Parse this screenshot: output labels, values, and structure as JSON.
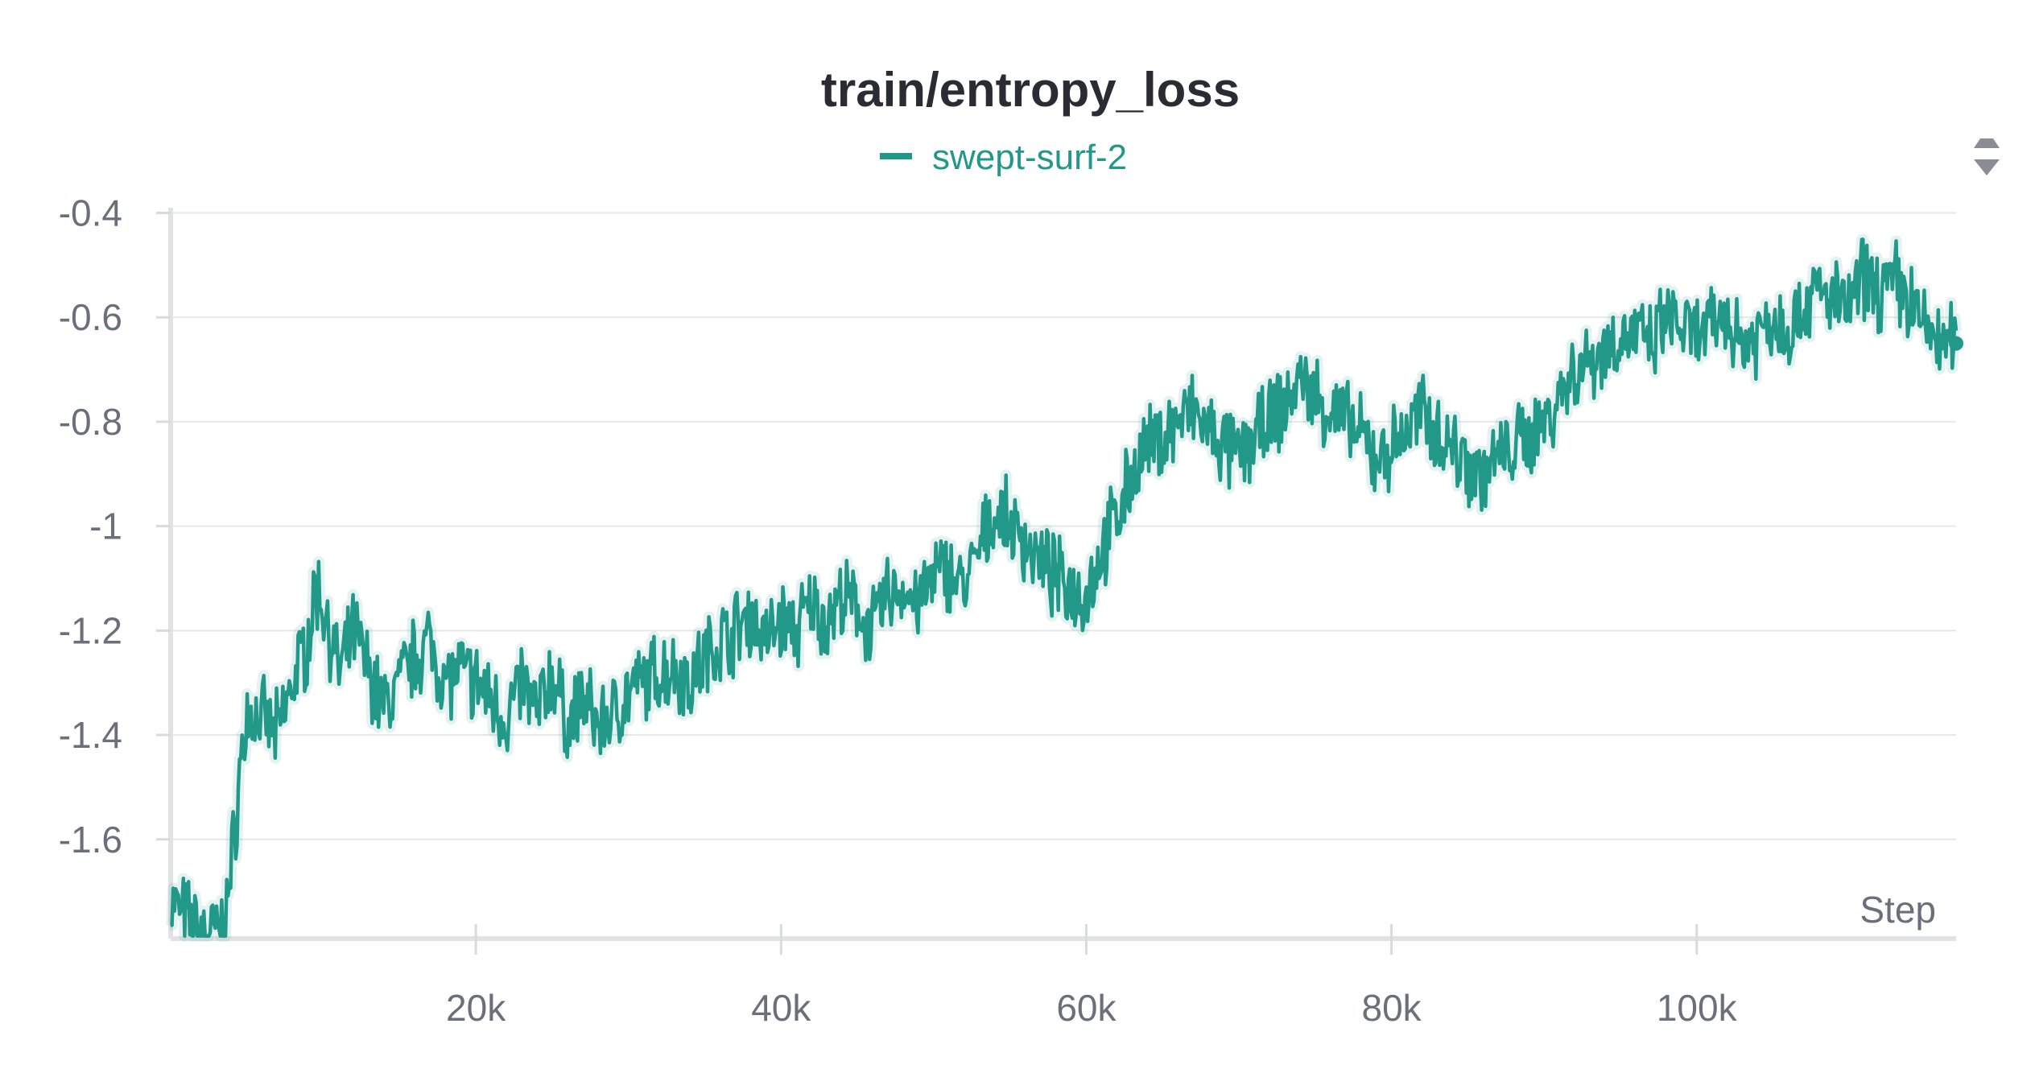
{
  "chart_data": {
    "type": "line",
    "title": "train/entropy_loss",
    "xlabel": "Step",
    "ylabel": "",
    "xlim": [
      0,
      117000
    ],
    "ylim": [
      -1.79,
      -0.39
    ],
    "xticks": [
      20000,
      40000,
      60000,
      80000,
      100000
    ],
    "xtick_labels": [
      "20k",
      "40k",
      "60k",
      "80k",
      "100k"
    ],
    "yticks": [
      -0.4,
      -0.6,
      -0.8,
      -1,
      -1.2,
      -1.4,
      -1.6
    ],
    "ytick_labels": [
      "-0.4",
      "-0.6",
      "-0.8",
      "-1",
      "-1.2",
      "-1.4",
      "-1.6"
    ],
    "grid": true,
    "legend": "top-center",
    "series": [
      {
        "name": "swept-surf-2",
        "color": "#229988",
        "x": [
          0,
          1000,
          2000,
          3000,
          3500,
          4000,
          4500,
          5000,
          6000,
          7000,
          8000,
          9000,
          9500,
          10000,
          11000,
          11500,
          12000,
          13000,
          14000,
          15000,
          16000,
          17000,
          18000,
          19000,
          20000,
          21000,
          22000,
          23000,
          24000,
          25000,
          26000,
          27000,
          28000,
          29000,
          30000,
          31000,
          32000,
          33000,
          34000,
          35000,
          36000,
          37000,
          38000,
          39000,
          40000,
          41000,
          42000,
          43000,
          44000,
          45000,
          46000,
          47000,
          48000,
          49000,
          50000,
          51000,
          52000,
          53000,
          54000,
          55000,
          56000,
          57000,
          58000,
          59000,
          60000,
          61000,
          62000,
          63000,
          64000,
          65000,
          66000,
          67000,
          68000,
          69000,
          70000,
          71000,
          72000,
          73000,
          74000,
          75000,
          76000,
          77000,
          78000,
          79000,
          80000,
          81000,
          82000,
          83000,
          84000,
          85000,
          86000,
          87000,
          88000,
          89000,
          90000,
          91000,
          92000,
          93000,
          94000,
          95000,
          96000,
          97000,
          98000,
          99000,
          100000,
          101000,
          102000,
          103000,
          104000,
          105000,
          106000,
          107000,
          108000,
          109000,
          110000,
          111000,
          112000,
          113000,
          114000,
          115000,
          116000,
          117000
        ],
        "values": [
          -1.72,
          -1.75,
          -1.78,
          -1.78,
          -1.77,
          -1.65,
          -1.48,
          -1.36,
          -1.37,
          -1.4,
          -1.3,
          -1.22,
          -1.12,
          -1.15,
          -1.28,
          -1.25,
          -1.2,
          -1.28,
          -1.35,
          -1.3,
          -1.25,
          -1.22,
          -1.3,
          -1.28,
          -1.3,
          -1.33,
          -1.37,
          -1.3,
          -1.36,
          -1.28,
          -1.38,
          -1.33,
          -1.38,
          -1.36,
          -1.32,
          -1.3,
          -1.28,
          -1.27,
          -1.3,
          -1.25,
          -1.22,
          -1.2,
          -1.17,
          -1.22,
          -1.18,
          -1.2,
          -1.15,
          -1.18,
          -1.14,
          -1.16,
          -1.2,
          -1.13,
          -1.12,
          -1.15,
          -1.1,
          -1.08,
          -1.12,
          -1.05,
          -0.97,
          -1.0,
          -1.03,
          -1.07,
          -1.1,
          -1.12,
          -1.13,
          -1.05,
          -0.98,
          -0.9,
          -0.85,
          -0.83,
          -0.8,
          -0.78,
          -0.82,
          -0.85,
          -0.87,
          -0.83,
          -0.8,
          -0.77,
          -0.72,
          -0.75,
          -0.78,
          -0.8,
          -0.83,
          -0.87,
          -0.85,
          -0.82,
          -0.78,
          -0.82,
          -0.85,
          -0.88,
          -0.9,
          -0.87,
          -0.85,
          -0.83,
          -0.8,
          -0.75,
          -0.7,
          -0.68,
          -0.66,
          -0.64,
          -0.63,
          -0.66,
          -0.6,
          -0.62,
          -0.64,
          -0.62,
          -0.6,
          -0.65,
          -0.63,
          -0.6,
          -0.62,
          -0.58,
          -0.55,
          -0.57,
          -0.58,
          -0.52,
          -0.55,
          -0.53,
          -0.57,
          -0.62,
          -0.65,
          -0.65
        ]
      }
    ]
  }
}
